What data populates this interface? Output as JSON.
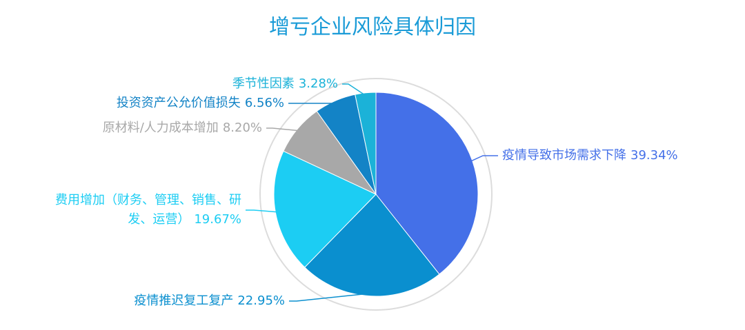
{
  "chart_data": {
    "type": "pie",
    "title": "增亏企业风险具体归因",
    "categories": [
      "疫情导致市场需求下降",
      "疫情推迟复工复产",
      "费用增加（财务、管理、销售、研发、运营）",
      "原材料/人力成本增加",
      "投资资产公允价值损失",
      "季节性因素"
    ],
    "values": [
      39.34,
      22.95,
      19.67,
      8.2,
      6.56,
      3.28
    ],
    "value_labels": [
      "39.34%",
      "22.95%",
      "19.67%",
      "8.20%",
      "6.56%",
      "3.28%"
    ],
    "colors": [
      "#4470e8",
      "#0a8fcf",
      "#1ccdf3",
      "#a8a8a8",
      "#1383c6",
      "#1bb2d8"
    ]
  }
}
